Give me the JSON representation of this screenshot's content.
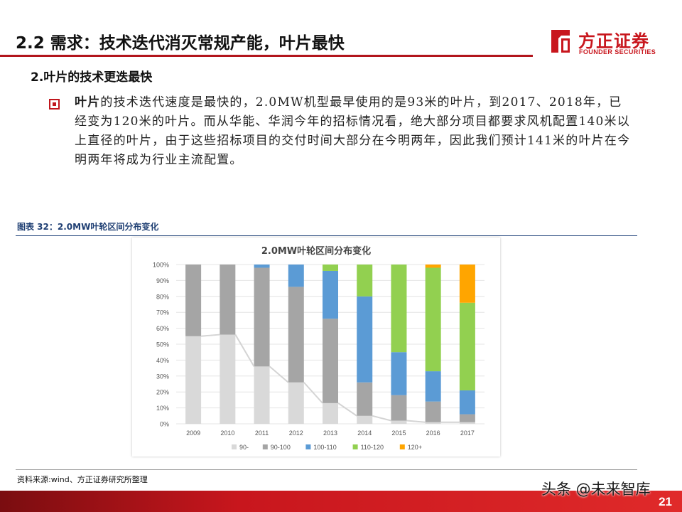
{
  "header": {
    "title": "2.2 需求：技术迭代消灭常规产能，叶片最快",
    "logo_cn": "方正证券",
    "logo_en": "FOUNDER SECURITIES"
  },
  "section": {
    "subtitle": "2.叶片的技术更迭最快",
    "para_bold": "叶片",
    "para_rest": "的技术迭代速度是最快的，2.0MW机型最早使用的是93米的叶片，到2017、2018年，已经变为120米的叶片。而从华能、华润今年的招标情况看，绝大部分项目都要求风机配置140米以上直径的叶片，由于这些招标项目的交付时间大部分在今明两年，因此我们预计141米的叶片在今明两年将成为行业主流配置。"
  },
  "figure": {
    "label": "图表 32：2.0MW叶轮区间分布变化",
    "source": "资料来源:wind、方正证券研究所整理"
  },
  "chart_data": {
    "type": "bar",
    "stacked": true,
    "title": "2.0MW叶轮区间分布变化",
    "categories": [
      "2009",
      "2010",
      "2011",
      "2012",
      "2013",
      "2014",
      "2015",
      "2016",
      "2017"
    ],
    "y_ticks": [
      "0%",
      "10%",
      "20%",
      "30%",
      "40%",
      "50%",
      "60%",
      "70%",
      "80%",
      "90%",
      "100%"
    ],
    "ylim": [
      0,
      100
    ],
    "grid": true,
    "legend_position": "bottom",
    "series": [
      {
        "name": "90-",
        "color": "#d9d9d9",
        "values": [
          55,
          56,
          36,
          26,
          13,
          5,
          2,
          1,
          1
        ]
      },
      {
        "name": "90-100",
        "color": "#a5a5a5",
        "values": [
          45,
          44,
          62,
          60,
          53,
          21,
          16,
          13,
          5
        ]
      },
      {
        "name": "100-110",
        "color": "#5b9bd5",
        "values": [
          0,
          0,
          2,
          14,
          30,
          54,
          27,
          19,
          15
        ]
      },
      {
        "name": "110-120",
        "color": "#92d050",
        "values": [
          0,
          0,
          0,
          0,
          4,
          20,
          55,
          65,
          55
        ]
      },
      {
        "name": "120+",
        "color": "#ffa500",
        "values": [
          0,
          0,
          0,
          0,
          0,
          0,
          0,
          2,
          24
        ]
      }
    ]
  },
  "watermark": "头条 @未来智库",
  "page_number": "21"
}
